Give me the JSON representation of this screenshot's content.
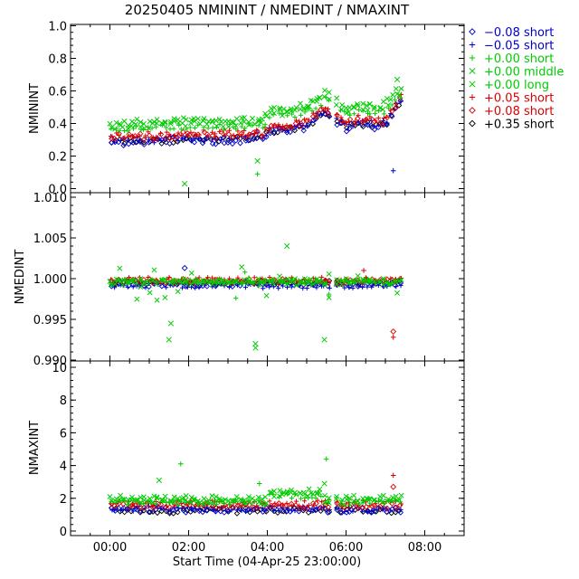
{
  "chart_data": {
    "type": "scatter",
    "title": "20250405  NMININT  /  NMEDINT  /  NMAXINT",
    "xlabel": "Start Time (04-Apr-25 23:00:00)",
    "x_ticks": [
      "00:00",
      "02:00",
      "04:00",
      "06:00",
      "08:00"
    ],
    "x_range_hours": [
      -1.0,
      9.0
    ],
    "legend": {
      "placement": "right",
      "entries": [
        {
          "symbol": "diamond",
          "label": "−0.08 short",
          "color": "#0000cc"
        },
        {
          "symbol": "plus",
          "label": "−0.05 short",
          "color": "#0000cc"
        },
        {
          "symbol": "plus",
          "label": "+0.00 short",
          "color": "#00cc00"
        },
        {
          "symbol": "cross",
          "label": "+0.00 middle",
          "color": "#00cc00"
        },
        {
          "symbol": "cross",
          "label": "+0.00 long",
          "color": "#00cc00"
        },
        {
          "symbol": "plus",
          "label": "+0.05 short",
          "color": "#dd0000"
        },
        {
          "symbol": "diamond",
          "label": "+0.08 short",
          "color": "#dd0000"
        },
        {
          "symbol": "diamond",
          "label": "+0.35 short",
          "color": "#000000"
        }
      ]
    },
    "panels": [
      {
        "ylabel": "NMININT",
        "ylim": [
          0.0,
          1.0
        ],
        "yticks": [
          "0.0",
          "0.2",
          "0.4",
          "0.6",
          "0.8",
          "1.0"
        ],
        "ytick_values": [
          0.0,
          0.2,
          0.4,
          0.6,
          0.8,
          1.0
        ],
        "outliers": [
          {
            "x": 1.9,
            "y": 0.03,
            "color": "#00cc00",
            "symbol": "cross"
          },
          {
            "x": 3.75,
            "y": 0.17,
            "color": "#00cc00",
            "symbol": "cross"
          },
          {
            "x": 3.75,
            "y": 0.09,
            "color": "#00cc00",
            "symbol": "plus"
          },
          {
            "x": 7.2,
            "y": 0.11,
            "color": "#0000cc",
            "symbol": "plus"
          },
          {
            "x": 7.3,
            "y": 0.67,
            "color": "#00cc00",
            "symbol": "cross"
          }
        ]
      },
      {
        "ylabel": "NMEDINT",
        "ylim": [
          0.99,
          1.01
        ],
        "yticks": [
          "0.990",
          "0.995",
          "1.000",
          "1.005",
          "1.010"
        ],
        "ytick_values": [
          0.99,
          0.995,
          1.0,
          1.005,
          1.01
        ],
        "outliers": [
          {
            "x": 1.5,
            "y": 0.9925,
            "color": "#00cc00",
            "symbol": "cross"
          },
          {
            "x": 1.55,
            "y": 0.9945,
            "color": "#00cc00",
            "symbol": "cross"
          },
          {
            "x": 1.9,
            "y": 1.0013,
            "color": "#0000cc",
            "symbol": "diamond"
          },
          {
            "x": 3.7,
            "y": 0.9915,
            "color": "#00cc00",
            "symbol": "cross"
          },
          {
            "x": 3.7,
            "y": 0.992,
            "color": "#00cc00",
            "symbol": "cross"
          },
          {
            "x": 4.5,
            "y": 1.004,
            "color": "#00cc00",
            "symbol": "cross"
          },
          {
            "x": 5.45,
            "y": 0.9925,
            "color": "#00cc00",
            "symbol": "cross"
          },
          {
            "x": 7.2,
            "y": 0.9935,
            "color": "#dd0000",
            "symbol": "diamond"
          },
          {
            "x": 7.2,
            "y": 0.9928,
            "color": "#dd0000",
            "symbol": "plus"
          },
          {
            "x": 6.45,
            "y": 1.001,
            "color": "#dd0000",
            "symbol": "plus"
          }
        ]
      },
      {
        "ylabel": "NMAXINT",
        "ylim": [
          0,
          10
        ],
        "yticks": [
          "0",
          "2",
          "4",
          "6",
          "8",
          "10"
        ],
        "ytick_values": [
          0,
          2,
          4,
          6,
          8,
          10
        ],
        "outliers": [
          {
            "x": 1.8,
            "y": 4.1,
            "color": "#00cc00",
            "symbol": "plus"
          },
          {
            "x": 1.25,
            "y": 3.1,
            "color": "#00cc00",
            "symbol": "cross"
          },
          {
            "x": 5.5,
            "y": 4.4,
            "color": "#00cc00",
            "symbol": "plus"
          },
          {
            "x": 5.45,
            "y": 2.9,
            "color": "#00cc00",
            "symbol": "cross"
          },
          {
            "x": 7.2,
            "y": 3.4,
            "color": "#dd0000",
            "symbol": "plus"
          },
          {
            "x": 7.2,
            "y": 2.7,
            "color": "#dd0000",
            "symbol": "diamond"
          },
          {
            "x": 3.8,
            "y": 2.9,
            "color": "#00cc00",
            "symbol": "plus"
          }
        ]
      }
    ],
    "series_bands": [
      {
        "name_ref": "legend.entries.7",
        "symbol": "diamond",
        "color": "#000000",
        "nmin": [
          [
            0.0,
            0.29
          ],
          [
            1.0,
            0.29
          ],
          [
            2.0,
            0.3
          ],
          [
            3.0,
            0.3
          ],
          [
            3.9,
            0.32
          ],
          [
            4.1,
            0.36
          ],
          [
            4.5,
            0.36
          ],
          [
            5.0,
            0.38
          ],
          [
            5.3,
            0.45
          ],
          [
            5.5,
            0.47
          ],
          [
            5.6,
            0.44
          ],
          [
            5.9,
            0.4
          ],
          [
            6.0,
            0.38
          ],
          [
            6.3,
            0.4
          ],
          [
            6.6,
            0.4
          ],
          [
            6.7,
            0.38
          ],
          [
            7.0,
            0.39
          ],
          [
            7.2,
            0.47
          ],
          [
            7.4,
            0.54
          ]
        ],
        "nmed": 0.9995,
        "nmax": 1.25
      },
      {
        "name_ref": "legend.entries.0",
        "symbol": "diamond",
        "color": "#0000cc",
        "nmin": [
          [
            0.0,
            0.28
          ],
          [
            1.0,
            0.29
          ],
          [
            2.0,
            0.3
          ],
          [
            3.0,
            0.29
          ],
          [
            3.9,
            0.31
          ],
          [
            4.1,
            0.35
          ],
          [
            4.5,
            0.36
          ],
          [
            5.0,
            0.37
          ],
          [
            5.3,
            0.44
          ],
          [
            5.5,
            0.46
          ],
          [
            5.6,
            0.43
          ],
          [
            5.9,
            0.39
          ],
          [
            6.0,
            0.37
          ],
          [
            6.3,
            0.39
          ],
          [
            6.6,
            0.4
          ],
          [
            6.7,
            0.37
          ],
          [
            7.0,
            0.38
          ],
          [
            7.2,
            0.46
          ],
          [
            7.4,
            0.53
          ]
        ],
        "nmed": 0.9993,
        "nmax": 1.3
      },
      {
        "name_ref": "legend.entries.1",
        "symbol": "plus",
        "color": "#0000cc",
        "nmin": [
          [
            0.0,
            0.3
          ],
          [
            1.0,
            0.3
          ],
          [
            2.0,
            0.31
          ],
          [
            3.0,
            0.31
          ],
          [
            3.9,
            0.33
          ],
          [
            4.1,
            0.37
          ],
          [
            4.5,
            0.37
          ],
          [
            5.0,
            0.39
          ],
          [
            5.3,
            0.46
          ],
          [
            5.5,
            0.48
          ],
          [
            5.6,
            0.45
          ],
          [
            5.9,
            0.41
          ],
          [
            6.0,
            0.39
          ],
          [
            6.3,
            0.41
          ],
          [
            6.6,
            0.41
          ],
          [
            6.7,
            0.39
          ],
          [
            7.0,
            0.4
          ],
          [
            7.2,
            0.48
          ],
          [
            7.4,
            0.55
          ]
        ],
        "nmed": 0.9991,
        "nmax": 1.35
      },
      {
        "name_ref": "legend.entries.6",
        "symbol": "diamond",
        "color": "#dd0000",
        "nmin": [
          [
            0.0,
            0.32
          ],
          [
            1.0,
            0.32
          ],
          [
            2.0,
            0.33
          ],
          [
            3.0,
            0.33
          ],
          [
            3.9,
            0.34
          ],
          [
            4.1,
            0.38
          ],
          [
            4.5,
            0.38
          ],
          [
            5.0,
            0.4
          ],
          [
            5.3,
            0.47
          ],
          [
            5.5,
            0.49
          ],
          [
            5.6,
            0.46
          ],
          [
            5.9,
            0.42
          ],
          [
            6.0,
            0.4
          ],
          [
            6.3,
            0.42
          ],
          [
            6.6,
            0.42
          ],
          [
            6.7,
            0.4
          ],
          [
            7.0,
            0.41
          ],
          [
            7.2,
            0.49
          ],
          [
            7.4,
            0.56
          ]
        ],
        "nmed": 0.9997,
        "nmax": 1.55
      },
      {
        "name_ref": "legend.entries.5",
        "symbol": "plus",
        "color": "#dd0000",
        "nmin": [
          [
            0.0,
            0.33
          ],
          [
            1.0,
            0.33
          ],
          [
            2.0,
            0.34
          ],
          [
            3.0,
            0.34
          ],
          [
            3.9,
            0.35
          ],
          [
            4.1,
            0.39
          ],
          [
            4.5,
            0.39
          ],
          [
            5.0,
            0.41
          ],
          [
            5.3,
            0.48
          ],
          [
            5.5,
            0.5
          ],
          [
            5.6,
            0.47
          ],
          [
            5.9,
            0.43
          ],
          [
            6.0,
            0.41
          ],
          [
            6.3,
            0.43
          ],
          [
            6.6,
            0.43
          ],
          [
            6.7,
            0.41
          ],
          [
            7.0,
            0.42
          ],
          [
            7.2,
            0.5
          ],
          [
            7.4,
            0.57
          ]
        ],
        "nmed": 0.9999,
        "nmax": 1.7
      },
      {
        "name_ref": "legend.entries.2",
        "symbol": "plus",
        "color": "#00cc00",
        "nmin": [
          [
            0.0,
            0.36
          ],
          [
            1.0,
            0.37
          ],
          [
            2.0,
            0.38
          ],
          [
            3.0,
            0.38
          ],
          [
            3.9,
            0.39
          ],
          [
            4.1,
            0.44
          ],
          [
            4.5,
            0.45
          ],
          [
            5.0,
            0.46
          ],
          [
            5.3,
            0.52
          ],
          [
            5.5,
            0.55
          ],
          [
            5.6,
            0.52
          ],
          [
            5.9,
            0.47
          ],
          [
            6.0,
            0.45
          ],
          [
            6.3,
            0.47
          ],
          [
            6.6,
            0.47
          ],
          [
            6.7,
            0.45
          ],
          [
            7.0,
            0.47
          ],
          [
            7.2,
            0.54
          ],
          [
            7.4,
            0.58
          ]
        ],
        "nmed": 0.9996,
        "nmax": 1.75
      },
      {
        "name_ref": "legend.entries.3",
        "symbol": "cross",
        "color": "#00cc00",
        "nmin": [
          [
            0.0,
            0.38
          ],
          [
            1.0,
            0.39
          ],
          [
            2.0,
            0.4
          ],
          [
            3.0,
            0.4
          ],
          [
            3.9,
            0.41
          ],
          [
            4.1,
            0.46
          ],
          [
            4.5,
            0.47
          ],
          [
            5.0,
            0.49
          ],
          [
            5.3,
            0.55
          ],
          [
            5.5,
            0.58
          ],
          [
            5.6,
            0.55
          ],
          [
            5.9,
            0.5
          ],
          [
            6.0,
            0.48
          ],
          [
            6.3,
            0.5
          ],
          [
            6.6,
            0.5
          ],
          [
            6.7,
            0.48
          ],
          [
            7.0,
            0.5
          ],
          [
            7.2,
            0.57
          ],
          [
            7.4,
            0.59
          ]
        ],
        "nmed": 0.9995,
        "nmax": 1.85
      },
      {
        "name_ref": "legend.entries.4",
        "symbol": "cross",
        "color": "#00cc00",
        "nmin": [
          [
            0.0,
            0.4
          ],
          [
            1.0,
            0.41
          ],
          [
            2.0,
            0.42
          ],
          [
            3.0,
            0.42
          ],
          [
            3.9,
            0.43
          ],
          [
            4.1,
            0.48
          ],
          [
            4.5,
            0.49
          ],
          [
            5.0,
            0.51
          ],
          [
            5.3,
            0.57
          ],
          [
            5.5,
            0.6
          ],
          [
            5.6,
            0.57
          ],
          [
            5.9,
            0.52
          ],
          [
            6.0,
            0.5
          ],
          [
            6.3,
            0.52
          ],
          [
            6.6,
            0.52
          ],
          [
            6.7,
            0.5
          ],
          [
            7.0,
            0.52
          ],
          [
            7.2,
            0.59
          ],
          [
            7.4,
            0.6
          ]
        ],
        "nmed": 0.9997,
        "nmax": 2.0
      }
    ],
    "time_span_hours": [
      0.0,
      7.45
    ],
    "gap_hours": [
      5.6,
      5.75
    ]
  }
}
